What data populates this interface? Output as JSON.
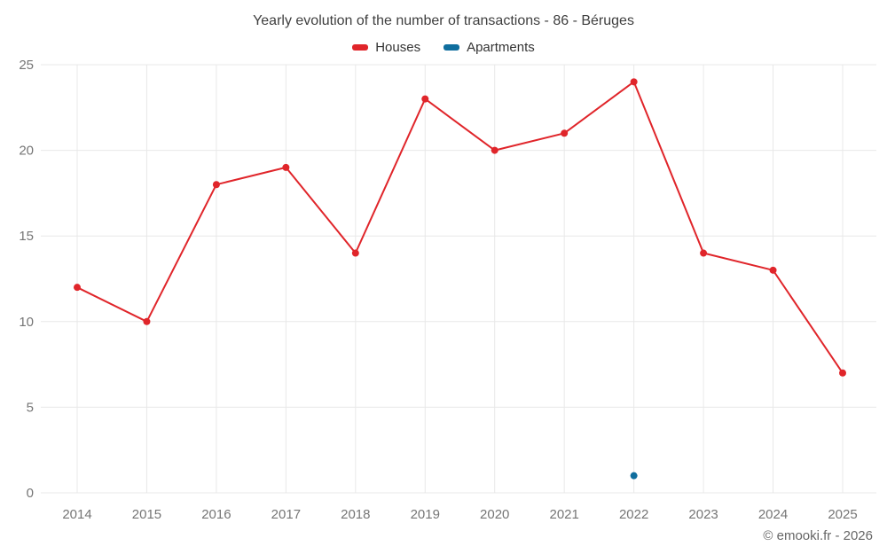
{
  "footer": {
    "copyright": "© emooki.fr - 2026"
  },
  "chart_data": {
    "type": "line",
    "title": "Yearly evolution of the number of transactions - 86 - Béruges",
    "x": [
      "2014",
      "2015",
      "2016",
      "2017",
      "2018",
      "2019",
      "2020",
      "2021",
      "2022",
      "2023",
      "2024",
      "2025"
    ],
    "series": [
      {
        "name": "Houses",
        "color": "#e0252a",
        "values": [
          12,
          10,
          18,
          19,
          14,
          23,
          20,
          21,
          24,
          14,
          13,
          7
        ]
      },
      {
        "name": "Apartments",
        "color": "#0f6e9e",
        "values": [
          null,
          null,
          null,
          null,
          null,
          null,
          null,
          null,
          1,
          null,
          null,
          null
        ]
      }
    ],
    "xlabel": "",
    "ylabel": "",
    "ylim": [
      0,
      25
    ],
    "yticks": [
      0,
      5,
      10,
      15,
      20,
      25
    ],
    "grid": true,
    "legend_position": "top",
    "marker_radius": 4,
    "grid_color": "#e8e8e8",
    "axis_label_color": "#757575"
  }
}
